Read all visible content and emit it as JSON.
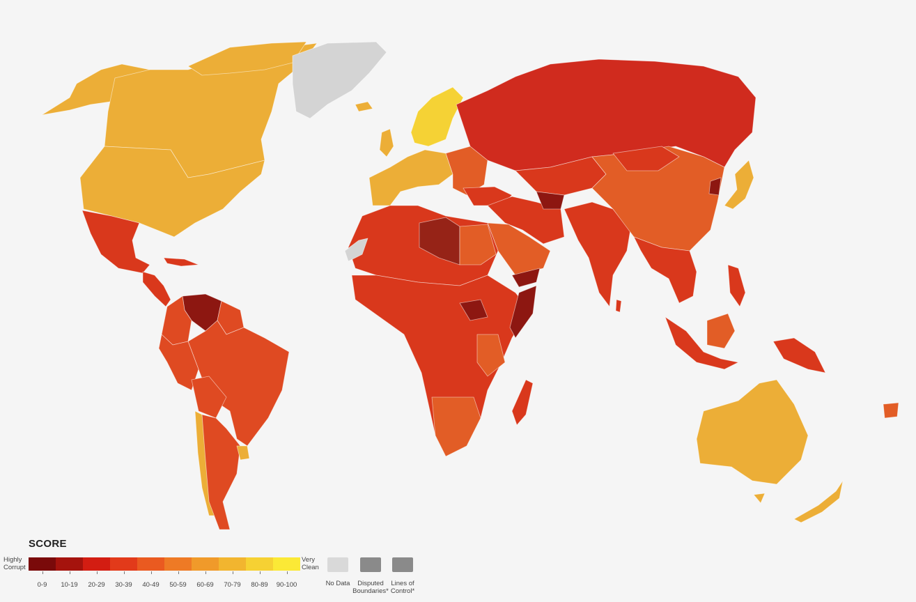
{
  "legend": {
    "title": "SCORE",
    "low_label": "Highly Corrupt",
    "high_label": "Very Clean",
    "ranges": [
      {
        "label": "0-9",
        "color": "#7a0a0a"
      },
      {
        "label": "10-19",
        "color": "#a5130d"
      },
      {
        "label": "20-29",
        "color": "#d31d12"
      },
      {
        "label": "30-39",
        "color": "#e23a1a"
      },
      {
        "label": "40-49",
        "color": "#ea5a20"
      },
      {
        "label": "50-59",
        "color": "#ee7a25"
      },
      {
        "label": "60-69",
        "color": "#f09a2a"
      },
      {
        "label": "70-79",
        "color": "#f2b52f"
      },
      {
        "label": "80-89",
        "color": "#f6d133"
      },
      {
        "label": "90-100",
        "color": "#fbe936"
      }
    ],
    "no_data": {
      "label": "No Data",
      "color": "#d9d9d9"
    },
    "disputed": {
      "label": "Disputed Boundaries*",
      "color": "#8a8a8a"
    },
    "lines_of_control": {
      "label": "Lines of Control*",
      "color": "#8a8a8a"
    }
  },
  "map_colors": {
    "background": "#f5f5f5",
    "ocean": "#f5f5f5",
    "high_income": "#ecae37",
    "nordic": "#f5d235",
    "russia": "#d02b1e",
    "china": "#e25d26",
    "south_america": "#df4a22",
    "africa": "#d9381c",
    "venezuela": "#8d1711",
    "libya": "#962317",
    "no_data": "#d4d4d4"
  }
}
